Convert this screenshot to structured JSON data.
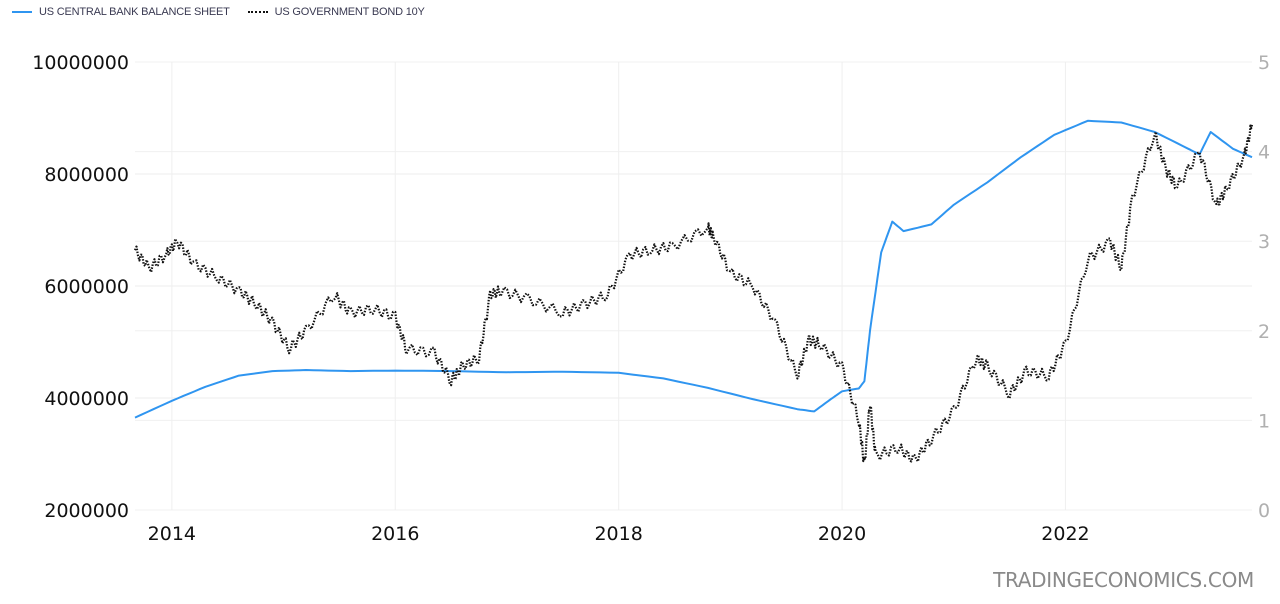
{
  "legend": {
    "items": [
      {
        "label": "US CENTRAL BANK BALANCE SHEET",
        "color": "#2f95f0",
        "style": "solid"
      },
      {
        "label": "US GOVERNMENT BOND 10Y",
        "color": "#111111",
        "style": "dotted"
      }
    ]
  },
  "watermark": "TRADINGECONOMICS.COM",
  "chart_data": {
    "type": "line",
    "title": "",
    "xlabel": "",
    "ylabel_left": "",
    "ylabel_right": "",
    "x_range": [
      2013.67,
      2023.67
    ],
    "x_ticks": [
      "2014",
      "2016",
      "2018",
      "2020",
      "2022"
    ],
    "y_left_ticks": [
      "10000000",
      "8000000",
      "6000000",
      "4000000",
      "2000000"
    ],
    "y_left_range": [
      2000000,
      10000000
    ],
    "y_right_ticks": [
      "5",
      "4",
      "3",
      "2",
      "1",
      "0"
    ],
    "y_right_range": [
      0,
      5
    ],
    "grid": true,
    "legend_position": "top-left",
    "series": [
      {
        "name": "US CENTRAL BANK BALANCE SHEET",
        "axis": "left",
        "color": "#2f95f0",
        "style": "solid",
        "x": [
          2013.67,
          2014.0,
          2014.3,
          2014.6,
          2014.9,
          2015.2,
          2015.6,
          2016.0,
          2016.5,
          2017.0,
          2017.5,
          2018.0,
          2018.4,
          2018.8,
          2019.2,
          2019.6,
          2019.75,
          2019.9,
          2020.0,
          2020.15,
          2020.2,
          2020.25,
          2020.35,
          2020.45,
          2020.55,
          2020.8,
          2021.0,
          2021.3,
          2021.6,
          2021.9,
          2022.2,
          2022.5,
          2022.8,
          2023.1,
          2023.2,
          2023.3,
          2023.5,
          2023.67
        ],
        "values": [
          3650000,
          3950000,
          4200000,
          4400000,
          4480000,
          4500000,
          4480000,
          4490000,
          4480000,
          4460000,
          4470000,
          4450000,
          4350000,
          4180000,
          3980000,
          3800000,
          3760000,
          3980000,
          4120000,
          4170000,
          4300000,
          5200000,
          6600000,
          7150000,
          6980000,
          7100000,
          7450000,
          7850000,
          8300000,
          8700000,
          8950000,
          8920000,
          8750000,
          8450000,
          8350000,
          8750000,
          8450000,
          8300000
        ]
      },
      {
        "name": "US GOVERNMENT BOND 10Y",
        "axis": "right",
        "color": "#111111",
        "style": "dotted",
        "x": [
          2013.67,
          2013.8,
          2013.95,
          2014.05,
          2014.2,
          2014.4,
          2014.6,
          2014.75,
          2014.9,
          2015.05,
          2015.2,
          2015.45,
          2015.6,
          2015.8,
          2016.0,
          2016.1,
          2016.35,
          2016.5,
          2016.6,
          2016.75,
          2016.85,
          2016.95,
          2017.2,
          2017.5,
          2017.7,
          2017.9,
          2018.1,
          2018.3,
          2018.5,
          2018.8,
          2018.85,
          2019.0,
          2019.2,
          2019.4,
          2019.6,
          2019.7,
          2019.8,
          2020.0,
          2020.15,
          2020.2,
          2020.25,
          2020.3,
          2020.5,
          2020.65,
          2020.8,
          2021.0,
          2021.2,
          2021.3,
          2021.5,
          2021.65,
          2021.85,
          2022.0,
          2022.2,
          2022.4,
          2022.5,
          2022.6,
          2022.8,
          2022.9,
          2023.0,
          2023.2,
          2023.35,
          2023.45,
          2023.6,
          2023.67
        ],
        "values": [
          2.9,
          2.7,
          2.85,
          3.0,
          2.75,
          2.6,
          2.45,
          2.3,
          2.1,
          1.8,
          2.0,
          2.4,
          2.2,
          2.25,
          2.15,
          1.8,
          1.75,
          1.45,
          1.6,
          1.7,
          2.4,
          2.45,
          2.35,
          2.2,
          2.3,
          2.4,
          2.85,
          2.9,
          2.95,
          3.15,
          3.05,
          2.65,
          2.5,
          2.1,
          1.5,
          1.9,
          1.85,
          1.6,
          1.0,
          0.5,
          1.2,
          0.6,
          0.7,
          0.55,
          0.8,
          1.1,
          1.7,
          1.6,
          1.3,
          1.55,
          1.5,
          1.85,
          2.8,
          3.0,
          2.7,
          3.5,
          4.2,
          3.8,
          3.6,
          4.0,
          3.4,
          3.6,
          3.95,
          4.3
        ]
      }
    ]
  }
}
